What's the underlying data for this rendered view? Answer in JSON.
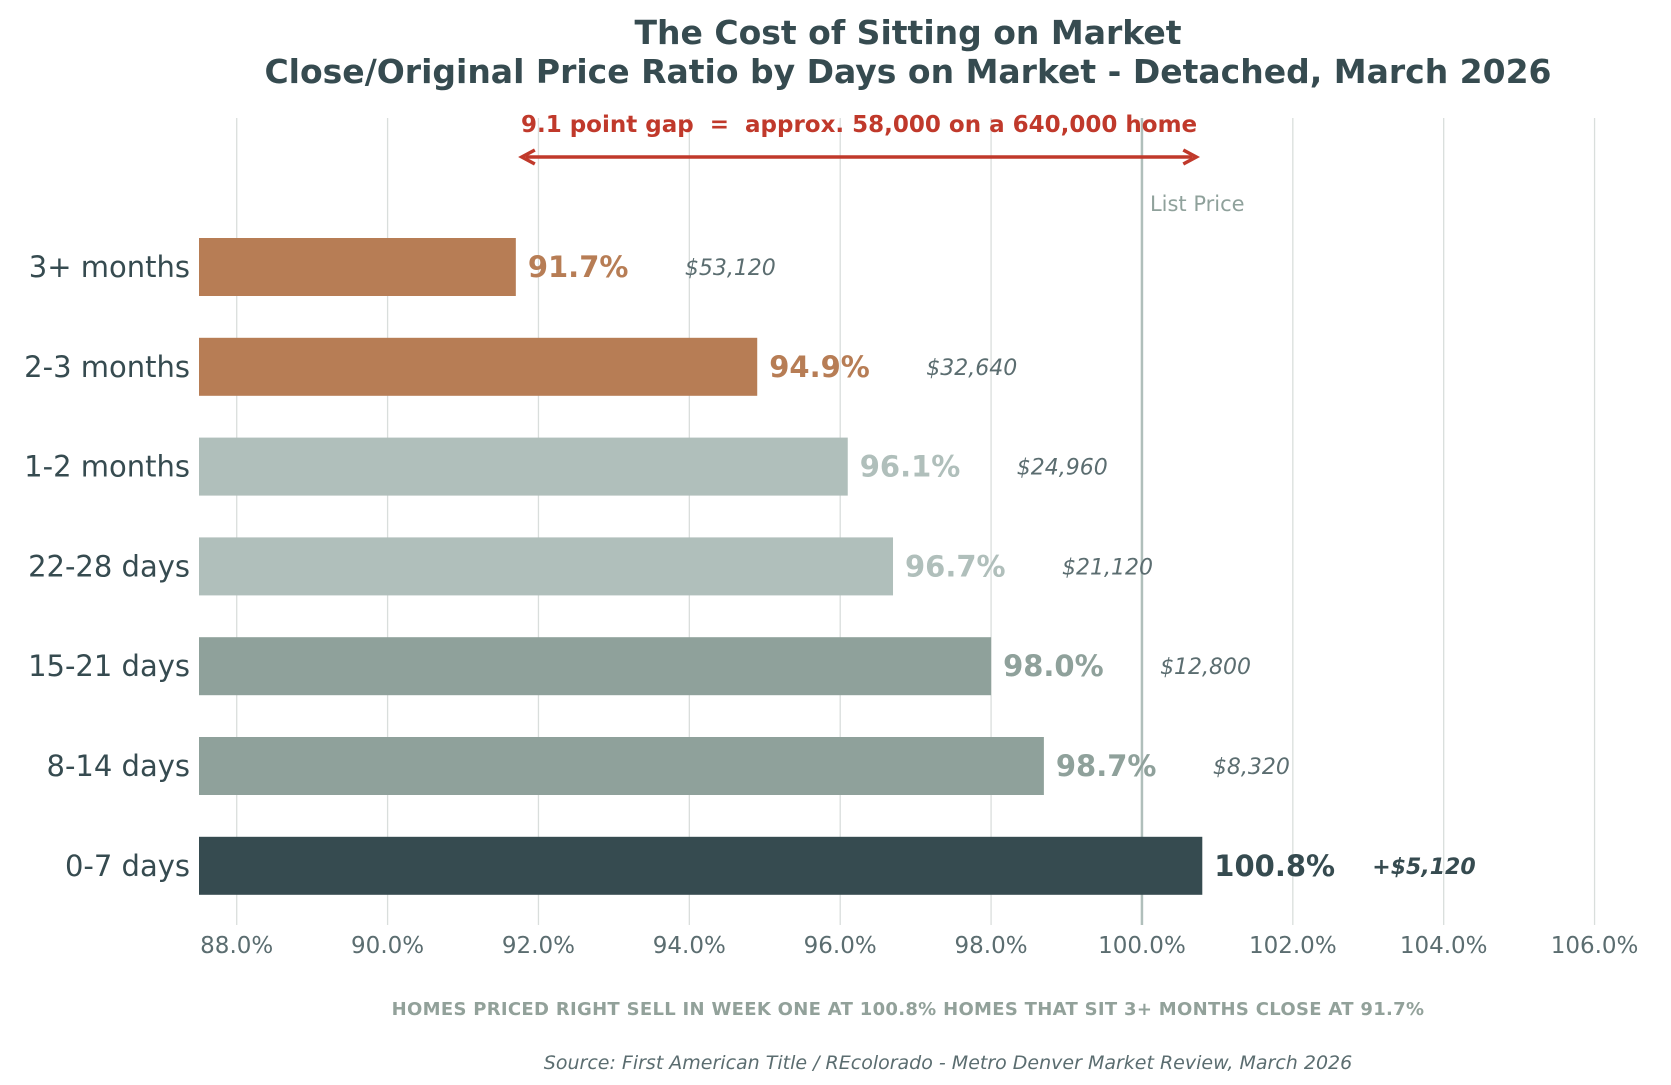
{
  "chart_data": {
    "type": "bar",
    "orientation": "horizontal",
    "title": "The Cost of Sitting on Market",
    "subtitle": "Close/Original Price Ratio by Days on Market - Detached, March 2026",
    "categories": [
      "3+ months",
      "2-3 months",
      "1-2 months",
      "22-28 days",
      "15-21 days",
      "8-14 days",
      "0-7 days"
    ],
    "values": [
      91.7,
      94.9,
      96.1,
      96.7,
      98.0,
      98.7,
      100.8
    ],
    "value_labels": [
      "91.7%",
      "94.9%",
      "96.1%",
      "96.7%",
      "98.0%",
      "98.7%",
      "100.8%"
    ],
    "dollar_labels": [
      "$53,120",
      "$32,640",
      "$24,960",
      "$21,120",
      "$12,800",
      "$8,320",
      "+$5,120"
    ],
    "bar_colors": [
      "#b77d55",
      "#b77d55",
      "#b0bfbb",
      "#b0bfbb",
      "#8fa19b",
      "#8fa19b",
      "#364b50"
    ],
    "xlim": [
      87.5,
      107
    ],
    "xticks": [
      88,
      90,
      92,
      94,
      96,
      98,
      100,
      102,
      104,
      106
    ],
    "xtick_labels": [
      "88.0%",
      "90.0%",
      "92.0%",
      "94.0%",
      "96.0%",
      "98.0%",
      "100.0%",
      "102.0%",
      "104.0%",
      "106.0%"
    ],
    "grid": "vertical",
    "reference_line": {
      "value": 100,
      "label": "List Price",
      "color": "#b0bfbb"
    },
    "annotation": {
      "text": "9.1 point gap  =  approx. 58,000 on a 640,000 home",
      "from": 91.7,
      "to": 100.8,
      "color": "#c0392b"
    },
    "footer_note": "HOMES PRICED RIGHT SELL IN WEEK ONE AT 100.8%   HOMES THAT SIT 3+ MONTHS CLOSE AT 91.7%",
    "source": "Source: First American Title / REcolorado - Metro Denver Market Review, March 2026"
  }
}
